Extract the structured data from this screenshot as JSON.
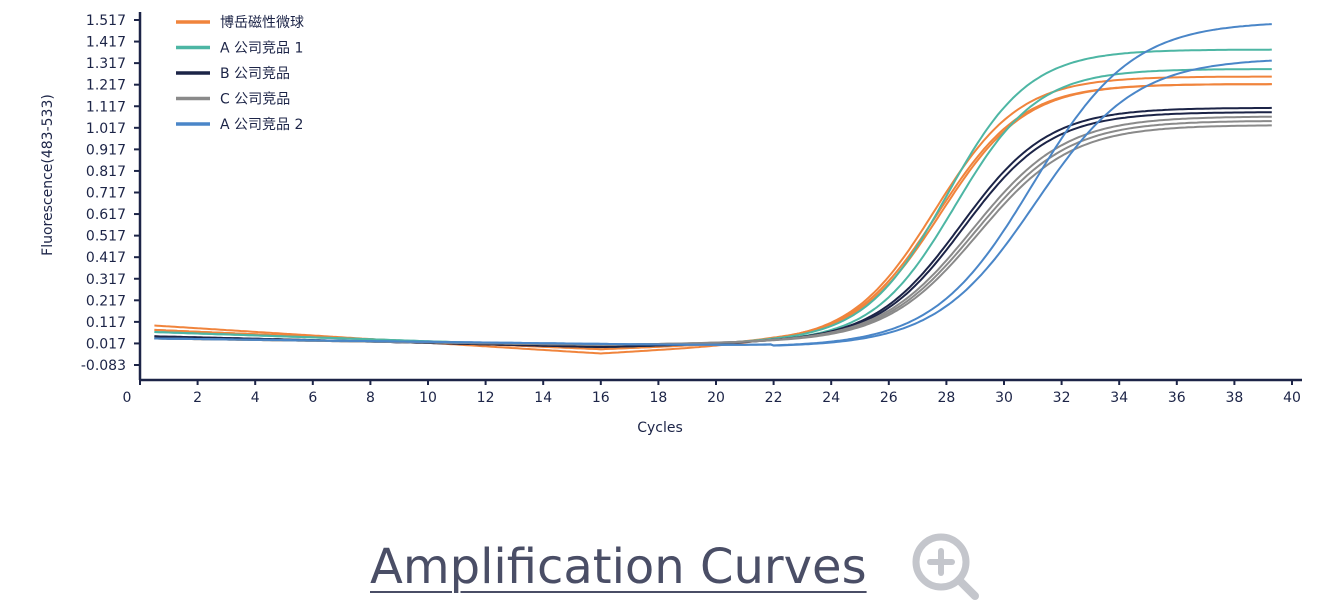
{
  "chart_data": {
    "type": "line",
    "xlabel": "Cycles",
    "ylabel": "Fluorescence(483-533)",
    "xlim": [
      0,
      40
    ],
    "ylim": [
      -0.083,
      1.517
    ],
    "x_ticks": [
      "0",
      "2",
      "4",
      "6",
      "8",
      "10",
      "12",
      "14",
      "16",
      "18",
      "20",
      "22",
      "24",
      "26",
      "28",
      "30",
      "32",
      "34",
      "36",
      "38",
      "40"
    ],
    "y_ticks": [
      "1.517",
      "1.417",
      "1.317",
      "1.217",
      "1.117",
      "1.017",
      "0.917",
      "0.817",
      "0.717",
      "0.617",
      "0.517",
      "0.417",
      "0.317",
      "0.217",
      "0.117",
      "0.017",
      "-0.083"
    ],
    "grid": false,
    "legend_position": "top-left",
    "legend": [
      {
        "label": "博岳磁性微球",
        "color": "#f0843c"
      },
      {
        "label": "A 公司竞品 1",
        "color": "#4db6a4"
      },
      {
        "label": "B 公司竞品",
        "color": "#1c2447"
      },
      {
        "label": "C 公司竞品",
        "color": "#8a8a8a"
      },
      {
        "label": "A 公司竞品 2",
        "color": "#4a86c8"
      }
    ],
    "series": [
      {
        "group": 0,
        "start": 0.1,
        "base_end": 0.015,
        "dip_at": 16,
        "dip": -0.03,
        "midpoint": 27.6,
        "steepness": 0.68,
        "plateau": 1.24
      },
      {
        "group": 0,
        "start": 0.08,
        "base_end": 0.02,
        "dip_at": 16,
        "dip": -0.01,
        "midpoint": 27.7,
        "steepness": 0.68,
        "plateau": 1.2
      },
      {
        "group": 0,
        "start": 0.08,
        "base_end": 0.02,
        "dip_at": 16,
        "dip": -0.01,
        "midpoint": 27.8,
        "steepness": 0.68,
        "plateau": 1.2
      },
      {
        "group": 1,
        "start": 0.07,
        "base_end": 0.02,
        "dip_at": 16,
        "dip": 0.0,
        "midpoint": 28.0,
        "steepness": 0.7,
        "plateau": 1.36
      },
      {
        "group": 1,
        "start": 0.07,
        "base_end": 0.02,
        "dip_at": 16,
        "dip": 0.0,
        "midpoint": 28.3,
        "steepness": 0.7,
        "plateau": 1.27
      },
      {
        "group": 2,
        "start": 0.05,
        "base_end": 0.02,
        "dip_at": 16,
        "dip": 0.0,
        "midpoint": 28.5,
        "steepness": 0.66,
        "plateau": 1.09
      },
      {
        "group": 2,
        "start": 0.05,
        "base_end": 0.02,
        "dip_at": 16,
        "dip": 0.0,
        "midpoint": 28.6,
        "steepness": 0.66,
        "plateau": 1.07
      },
      {
        "group": 3,
        "start": 0.04,
        "base_end": 0.02,
        "dip_at": 16,
        "dip": 0.01,
        "midpoint": 28.9,
        "steepness": 0.62,
        "plateau": 1.05
      },
      {
        "group": 3,
        "start": 0.04,
        "base_end": 0.02,
        "dip_at": 16,
        "dip": 0.01,
        "midpoint": 29.0,
        "steepness": 0.62,
        "plateau": 1.03
      },
      {
        "group": 3,
        "start": 0.04,
        "base_end": 0.02,
        "dip_at": 16,
        "dip": 0.01,
        "midpoint": 29.1,
        "steepness": 0.62,
        "plateau": 1.01
      },
      {
        "group": 4,
        "start": 0.04,
        "base_end": 0.0,
        "dip_at": 22,
        "dip": 0.005,
        "midpoint": 31.0,
        "steepness": 0.58,
        "plateau": 1.51
      },
      {
        "group": 4,
        "start": 0.04,
        "base_end": 0.0,
        "dip_at": 22,
        "dip": 0.005,
        "midpoint": 31.1,
        "steepness": 0.58,
        "plateau": 1.34
      }
    ]
  },
  "caption": {
    "text": "Amplification Curves",
    "zoom_icon": "zoom-in-icon"
  }
}
